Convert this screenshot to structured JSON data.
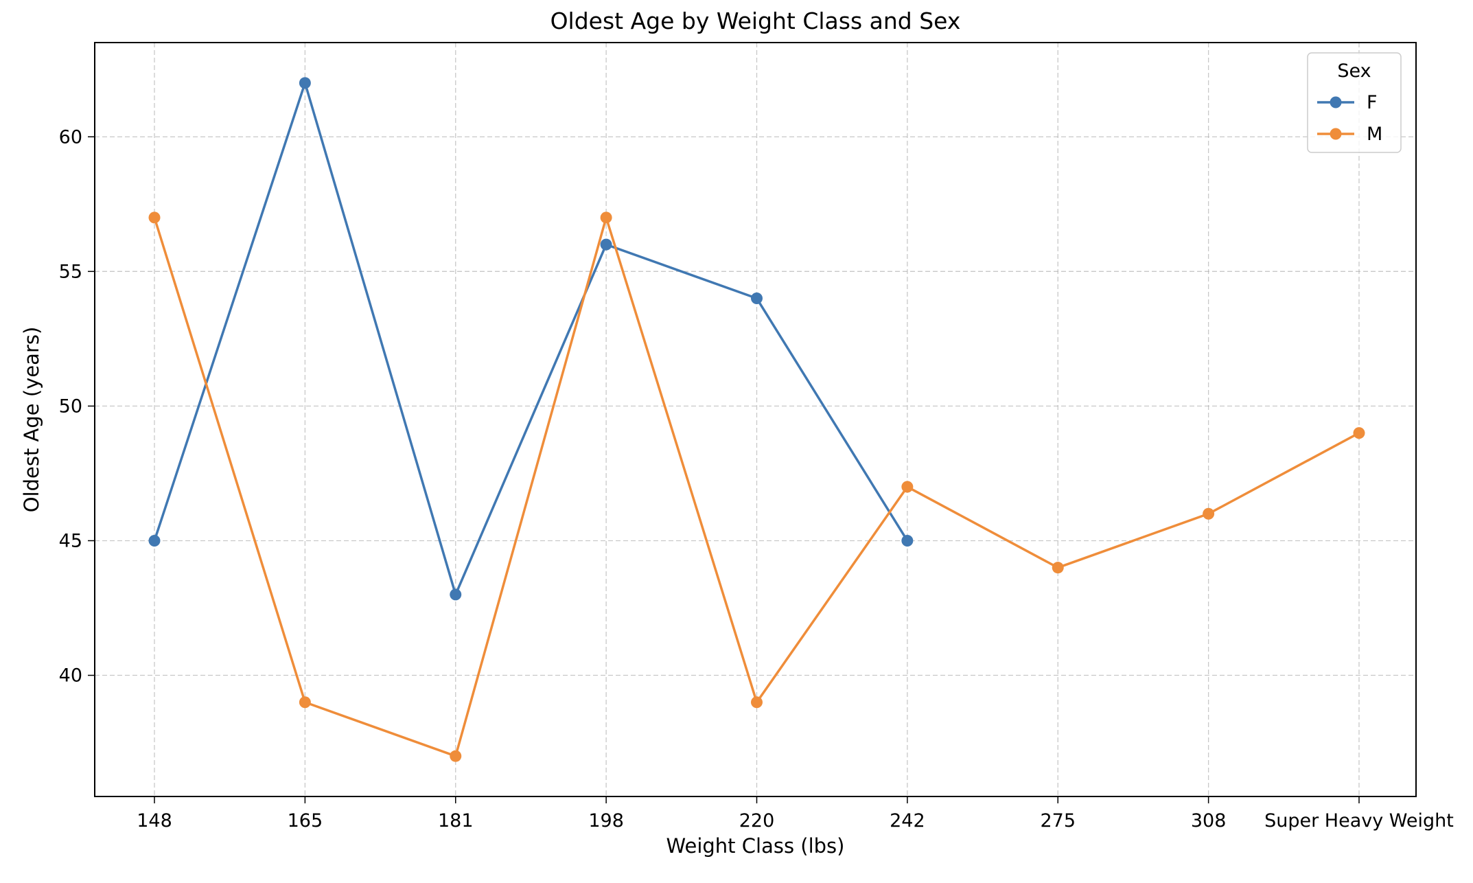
{
  "chart_data": {
    "type": "line",
    "title": "Oldest Age by Weight Class and Sex",
    "xlabel": "Weight Class (lbs)",
    "ylabel": "Oldest Age (years)",
    "categories": [
      "148",
      "165",
      "181",
      "198",
      "220",
      "242",
      "275",
      "308",
      "Super Heavy Weight"
    ],
    "yticks": [
      40,
      45,
      50,
      55,
      60
    ],
    "ylim": [
      35.5,
      63.5
    ],
    "grid": true,
    "legend": {
      "title": "Sex",
      "placement": "top-right"
    },
    "series": [
      {
        "name": "F",
        "color": "#4078b2",
        "values": [
          45,
          62,
          43,
          56,
          54,
          45,
          null,
          null,
          null
        ]
      },
      {
        "name": "M",
        "color": "#ef8d3a",
        "values": [
          57,
          39,
          37,
          57,
          39,
          47,
          44,
          46,
          49
        ]
      }
    ]
  }
}
